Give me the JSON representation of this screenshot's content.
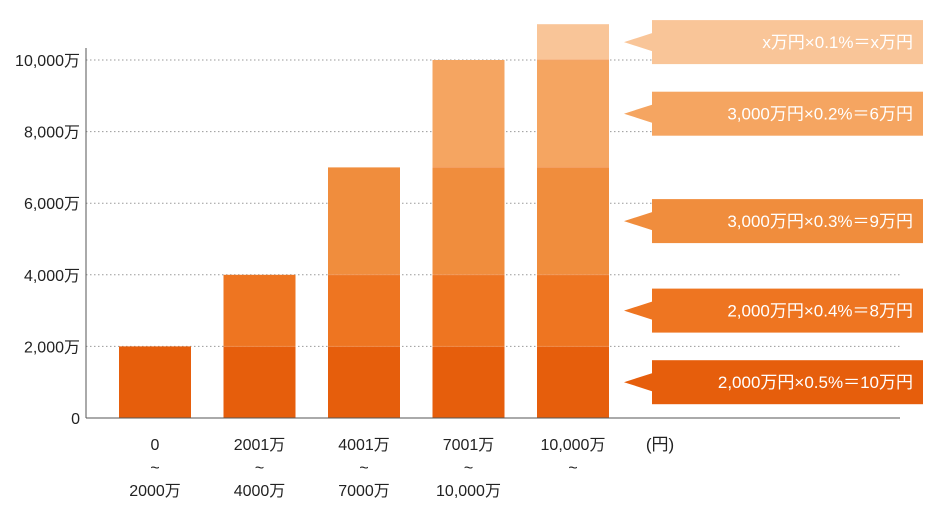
{
  "chart_data": {
    "type": "bar",
    "stacked": true,
    "categories": [
      [
        "0",
        "~",
        "2000万"
      ],
      [
        "2001万",
        "~",
        "4000万"
      ],
      [
        "4001万",
        "~",
        "7000万"
      ],
      [
        "7001万",
        "~",
        "10,000万"
      ],
      [
        "10,000万",
        "~"
      ]
    ],
    "unit_label": "(円)",
    "y_ticks": [
      {
        "value": 0,
        "label": "0"
      },
      {
        "value": 2000,
        "label": "2,000万"
      },
      {
        "value": 4000,
        "label": "4,000万"
      },
      {
        "value": 6000,
        "label": "6,000万"
      },
      {
        "value": 8000,
        "label": "8,000万"
      },
      {
        "value": 10000,
        "label": "10,000万"
      }
    ],
    "ylim": [
      0,
      10000
    ],
    "grid": true,
    "series": [
      {
        "color": "#e65e0c",
        "values": [
          2000,
          2000,
          2000,
          2000,
          2000
        ]
      },
      {
        "color": "#ee7521",
        "values": [
          0,
          2000,
          2000,
          2000,
          2000
        ]
      },
      {
        "color": "#f08d3d",
        "values": [
          0,
          0,
          3000,
          3000,
          3000
        ]
      },
      {
        "color": "#f5a561",
        "values": [
          0,
          0,
          0,
          3000,
          3000
        ]
      },
      {
        "color": "#f9c598",
        "values": [
          0,
          0,
          0,
          0,
          1000
        ]
      }
    ],
    "callouts": [
      {
        "text": "2,000万円×0.5%＝10万円",
        "color": "#e65e0c",
        "segment_center": 1000
      },
      {
        "text": "2,000万円×0.4%＝8万円",
        "color": "#ee7521",
        "segment_center": 3000
      },
      {
        "text": "3,000万円×0.3%＝9万円",
        "color": "#f08d3d",
        "segment_center": 5500
      },
      {
        "text": "3,000万円×0.2%＝6万円",
        "color": "#f5a561",
        "segment_center": 8500
      },
      {
        "text": "x万円×0.1%＝x万円",
        "color": "#f9c598",
        "segment_center": 10500
      }
    ]
  }
}
